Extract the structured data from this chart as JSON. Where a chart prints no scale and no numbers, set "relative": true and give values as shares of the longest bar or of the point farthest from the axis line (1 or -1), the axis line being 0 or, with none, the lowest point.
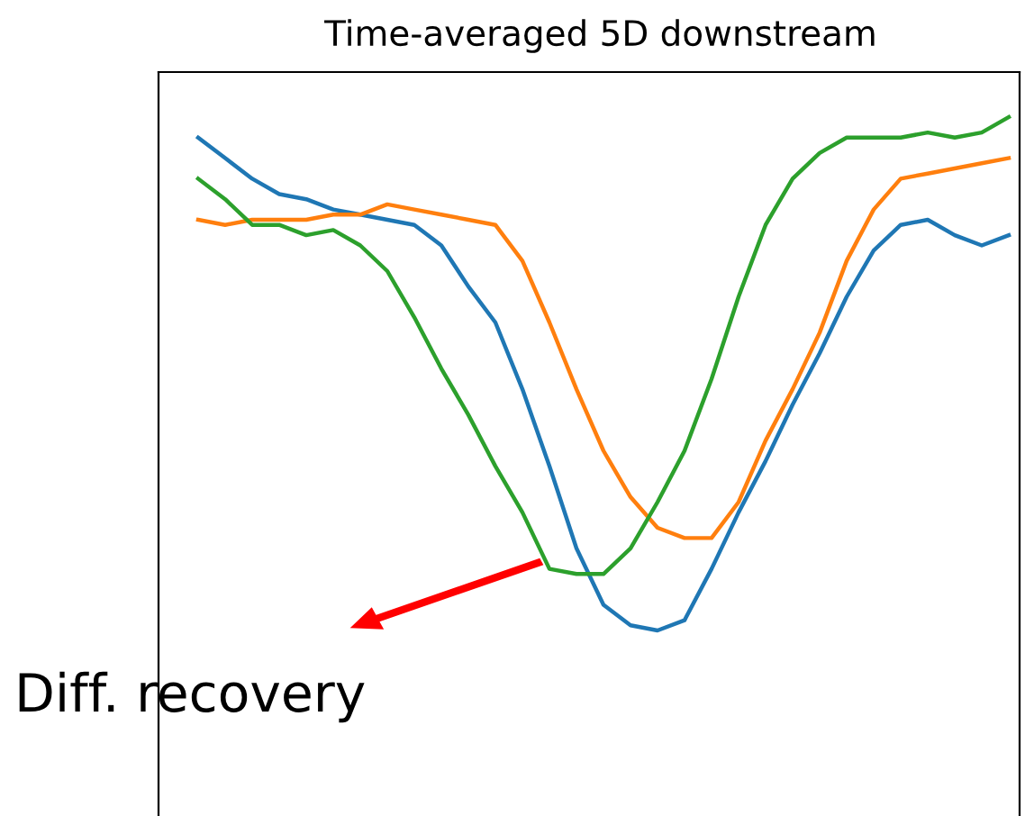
{
  "chart_data": {
    "type": "line",
    "title": "Time-averaged 5D downstream",
    "relative": true,
    "categories": [
      null,
      null,
      null,
      null,
      null,
      null,
      null,
      null,
      null,
      null,
      null,
      null,
      null,
      null,
      null,
      null,
      null,
      null,
      null,
      null,
      null,
      null,
      null,
      null,
      null,
      null,
      null,
      null,
      null,
      null,
      null
    ],
    "series": [
      {
        "color": "#1f77b4",
        "values": [
          0.96,
          0.92,
          0.88,
          0.85,
          0.84,
          0.82,
          0.81,
          0.8,
          0.79,
          0.75,
          0.67,
          0.6,
          0.47,
          0.32,
          0.16,
          0.05,
          0.01,
          0,
          0.02,
          0.12,
          0.23,
          0.33,
          0.44,
          0.54,
          0.65,
          0.74,
          0.79,
          0.8,
          0.77,
          0.75,
          0.77
        ]
      },
      {
        "color": "#ff7f0e",
        "values": [
          0.8,
          0.79,
          0.8,
          0.8,
          0.8,
          0.81,
          0.81,
          0.83,
          0.82,
          0.81,
          0.8,
          0.79,
          0.72,
          0.6,
          0.47,
          0.35,
          0.26,
          0.2,
          0.18,
          0.18,
          0.25,
          0.37,
          0.47,
          0.58,
          0.72,
          0.82,
          0.88,
          0.89,
          0.9,
          0.91,
          0.92
        ]
      },
      {
        "color": "#2ca02c",
        "values": [
          0.88,
          0.84,
          0.79,
          0.79,
          0.77,
          0.78,
          0.75,
          0.7,
          0.61,
          0.51,
          0.42,
          0.32,
          0.23,
          0.12,
          0.11,
          0.11,
          0.16,
          0.25,
          0.35,
          0.49,
          0.65,
          0.79,
          0.88,
          0.93,
          0.96,
          0.96,
          0.96,
          0.97,
          0.96,
          0.97,
          1
        ]
      }
    ],
    "annotations": [
      "Diff. recovery"
    ]
  }
}
